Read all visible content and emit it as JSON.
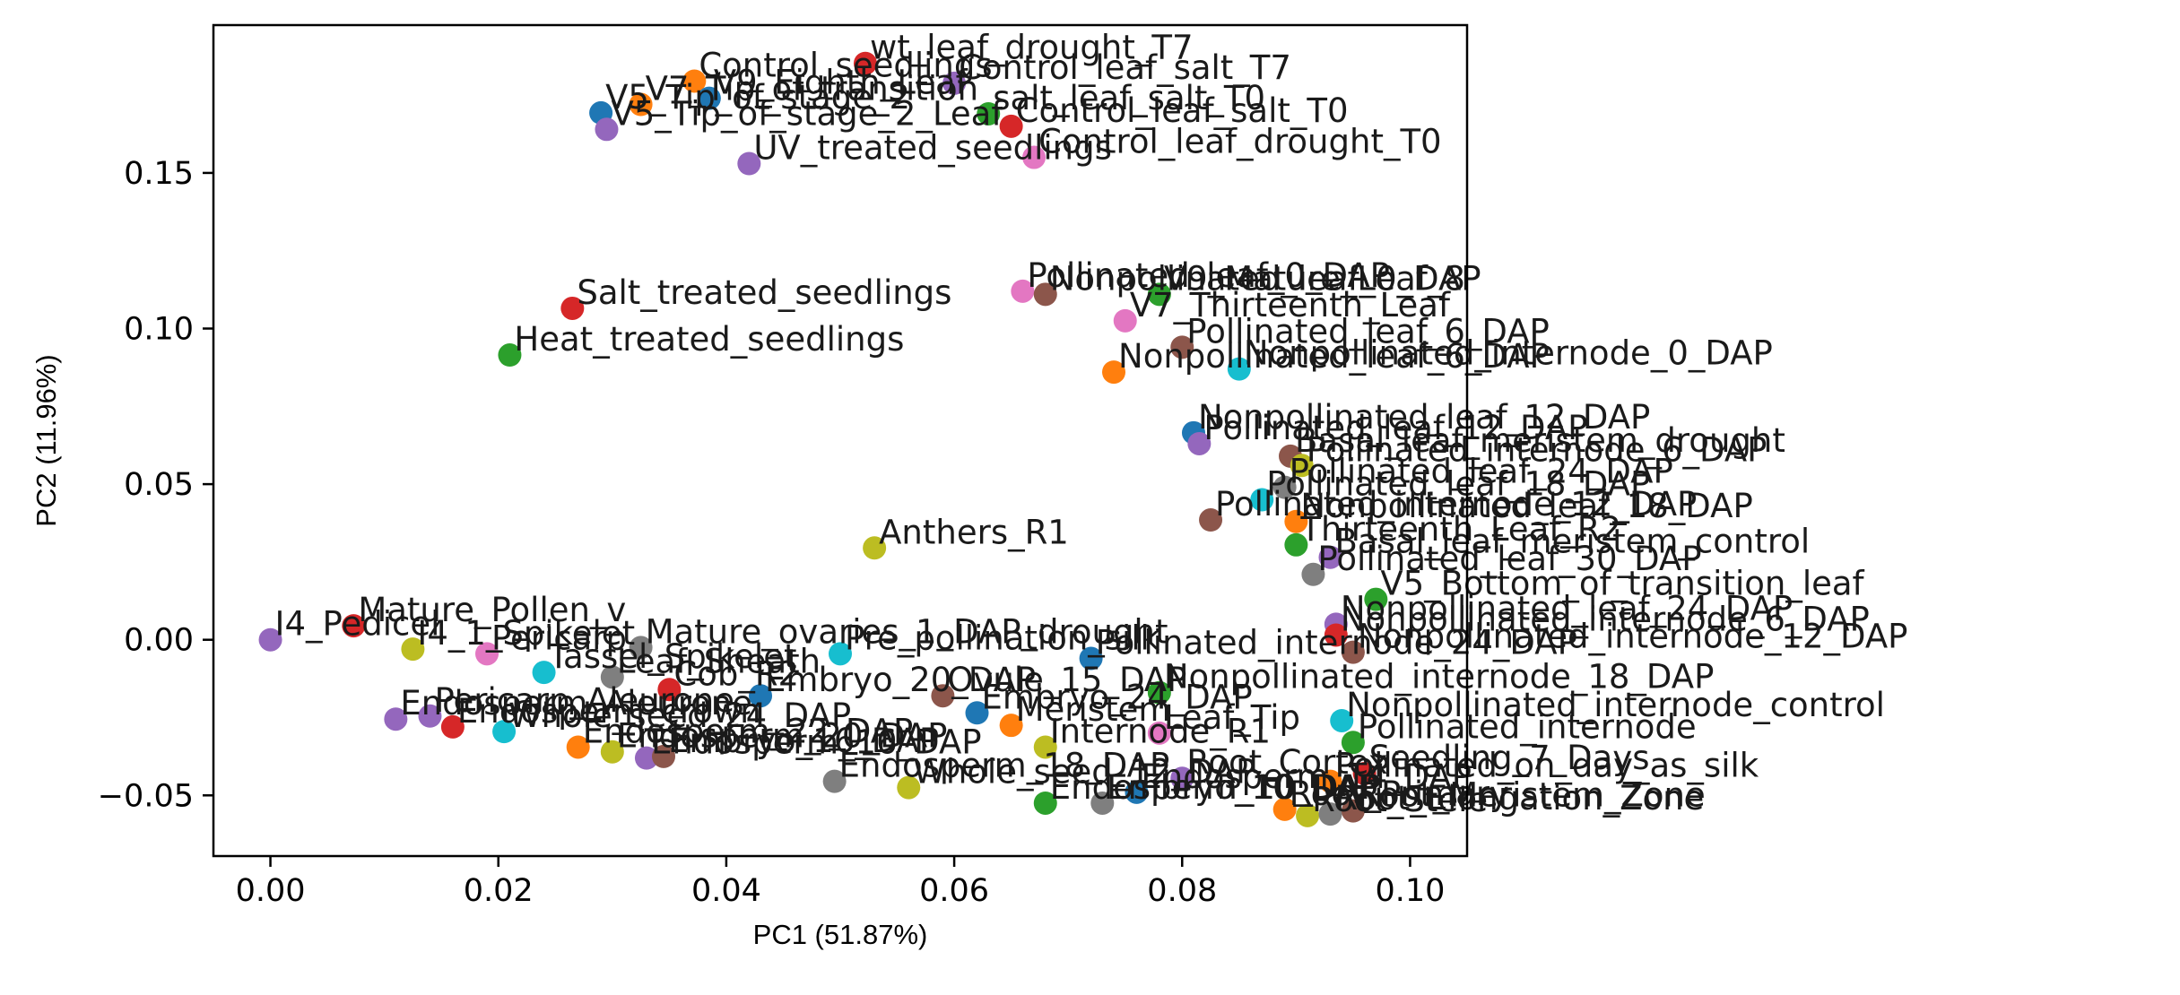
{
  "chart_data": {
    "type": "scatter",
    "xlabel": "PC1 (51.87%)",
    "ylabel": "PC2 (11.96%)",
    "xlim": [
      -0.005,
      0.105
    ],
    "ylim": [
      -0.0695,
      0.1975
    ],
    "xticks": [
      0.0,
      0.02,
      0.04,
      0.06,
      0.08,
      0.1
    ],
    "xtick_labels": [
      "0.00",
      "0.02",
      "0.04",
      "0.06",
      "0.08",
      "0.10"
    ],
    "yticks": [
      -0.05,
      0.0,
      0.05,
      0.1,
      0.15
    ],
    "ytick_labels": [
      "−0.05",
      "0.00",
      "0.05",
      "0.10",
      "0.15"
    ],
    "grid": false,
    "points": [
      {
        "x": 0.0522,
        "y": 0.1852,
        "label": "wt_leaf_drought_T7",
        "color": "#d62728"
      },
      {
        "x": 0.0372,
        "y": 0.1795,
        "label": "Control_seedlings",
        "color": "#ff7f0e"
      },
      {
        "x": 0.06,
        "y": 0.1788,
        "label": "Control_leaf_salt_T7",
        "color": "#9467bd"
      },
      {
        "x": 0.029,
        "y": 0.1693,
        "label": "V5_Tip_of_stage_2",
        "color": "#1f77b4"
      },
      {
        "x": 0.0325,
        "y": 0.172,
        "label": "V7_Tip_of_transition",
        "color": "#ff7f0e"
      },
      {
        "x": 0.0385,
        "y": 0.174,
        "label": "V9_Eighth_Leaf",
        "color": "#1f77b4"
      },
      {
        "x": 0.063,
        "y": 0.169,
        "label": "salt_leaf_salt_T0",
        "color": "#2ca02c"
      },
      {
        "x": 0.065,
        "y": 0.165,
        "label": "Control_leaf_salt_T0",
        "color": "#d62728"
      },
      {
        "x": 0.0295,
        "y": 0.164,
        "label": "V5_Tip_of_stage_2_Leaf",
        "color": "#9467bd"
      },
      {
        "x": 0.042,
        "y": 0.153,
        "label": "UV_treated_seedlings",
        "color": "#9467bd"
      },
      {
        "x": 0.067,
        "y": 0.155,
        "label": "Control_leaf_drought_T0",
        "color": "#e377c2"
      },
      {
        "x": 0.066,
        "y": 0.112,
        "label": "Pollinated_leaf_0_DAP",
        "color": "#e377c2"
      },
      {
        "x": 0.068,
        "y": 0.111,
        "label": "Nonpollinated_leaf_0_DAP",
        "color": "#8c564b"
      },
      {
        "x": 0.078,
        "y": 0.111,
        "label": "V9_Mature_Leaf_8",
        "color": "#2ca02c"
      },
      {
        "x": 0.0265,
        "y": 0.1065,
        "label": "Salt_treated_seedlings",
        "color": "#d62728"
      },
      {
        "x": 0.075,
        "y": 0.1025,
        "label": "V7_Thirteenth_Leaf",
        "color": "#e377c2"
      },
      {
        "x": 0.021,
        "y": 0.0915,
        "label": "Heat_treated_seedlings",
        "color": "#2ca02c"
      },
      {
        "x": 0.08,
        "y": 0.094,
        "label": "Pollinated_leaf_6_DAP",
        "color": "#8c564b"
      },
      {
        "x": 0.074,
        "y": 0.086,
        "label": "Nonpollinated_leaf_6_DAP",
        "color": "#ff7f0e"
      },
      {
        "x": 0.085,
        "y": 0.087,
        "label": "Nonpollinated_internode_0_DAP",
        "color": "#17becf"
      },
      {
        "x": 0.081,
        "y": 0.0665,
        "label": "Nonpollinated_leaf_12_DAP",
        "color": "#1f77b4"
      },
      {
        "x": 0.0815,
        "y": 0.063,
        "label": "Pollinated_leaf_12_DAP",
        "color": "#9467bd"
      },
      {
        "x": 0.0895,
        "y": 0.059,
        "label": "Basal_leaf_meristem_drought",
        "color": "#8c564b"
      },
      {
        "x": 0.0905,
        "y": 0.056,
        "label": "Pollinated_internode_6_DAP",
        "color": "#bcbd22"
      },
      {
        "x": 0.089,
        "y": 0.049,
        "label": "Pollinated_leaf_24_DAP",
        "color": "#7f7f7f"
      },
      {
        "x": 0.087,
        "y": 0.045,
        "label": "Pollinated_leaf_18_DAP",
        "color": "#17becf"
      },
      {
        "x": 0.0825,
        "y": 0.0385,
        "label": "Pollinated_internode_12_DAP",
        "color": "#8c564b"
      },
      {
        "x": 0.09,
        "y": 0.038,
        "label": "Nonpollinated_leaf_18_DAP",
        "color": "#ff7f0e"
      },
      {
        "x": 0.053,
        "y": 0.0295,
        "label": "Anthers_R1",
        "color": "#bcbd22"
      },
      {
        "x": 0.09,
        "y": 0.0305,
        "label": "Thirteenth_Leaf_R2",
        "color": "#2ca02c"
      },
      {
        "x": 0.093,
        "y": 0.0265,
        "label": "Basal_leaf_meristem_control",
        "color": "#9467bd"
      },
      {
        "x": 0.0915,
        "y": 0.021,
        "label": "Pollinated_leaf_30_DAP",
        "color": "#7f7f7f"
      },
      {
        "x": 0.097,
        "y": 0.013,
        "label": "V5_Bottom_of_transition_leaf",
        "color": "#2ca02c"
      },
      {
        "x": 0.0073,
        "y": 0.0045,
        "label": "Mature_Pollen_v",
        "color": "#d62728"
      },
      {
        "x": 0.0935,
        "y": 0.005,
        "label": "Nonpollinated_leaf_24_DAP",
        "color": "#9467bd"
      },
      {
        "x": 0.0935,
        "y": 0.0015,
        "label": "Nonpollinated_internode_6_DAP",
        "color": "#d62728"
      },
      {
        "x": 0.0,
        "y": 0.0,
        "label": "I4_Pedicel",
        "color": "#9467bd"
      },
      {
        "x": 0.0125,
        "y": -0.003,
        "label": "I4_1_Spikelet",
        "color": "#bcbd22"
      },
      {
        "x": 0.019,
        "y": -0.0045,
        "label": "Pericarp",
        "color": "#e377c2"
      },
      {
        "x": 0.0325,
        "y": -0.0025,
        "label": "Mature_ovaries_1_DAP_drought",
        "color": "#7f7f7f"
      },
      {
        "x": 0.05,
        "y": -0.0045,
        "label": "Pre_pollination_silk",
        "color": "#17becf"
      },
      {
        "x": 0.072,
        "y": -0.006,
        "label": "Pollinated_internode_24_DAP",
        "color": "#1f77b4"
      },
      {
        "x": 0.095,
        "y": -0.004,
        "label": "Nonpollinated_internode_12_DAP",
        "color": "#8c564b"
      },
      {
        "x": 0.024,
        "y": -0.0105,
        "label": "Tassel_Spikelet",
        "color": "#17becf"
      },
      {
        "x": 0.03,
        "y": -0.012,
        "label": "Leaf_Sheath",
        "color": "#7f7f7f"
      },
      {
        "x": 0.035,
        "y": -0.016,
        "label": "Cob_R2",
        "color": "#d62728"
      },
      {
        "x": 0.043,
        "y": -0.018,
        "label": "Embryo_20_DAP",
        "color": "#1f77b4"
      },
      {
        "x": 0.059,
        "y": -0.018,
        "label": "Ovule_15_DAP",
        "color": "#8c564b"
      },
      {
        "x": 0.078,
        "y": -0.017,
        "label": "Nonpollinated_internode_18_DAP",
        "color": "#2ca02c"
      },
      {
        "x": 0.011,
        "y": -0.0255,
        "label": "Endosperm_Aleurone",
        "color": "#9467bd"
      },
      {
        "x": 0.014,
        "y": -0.0245,
        "label": "Pericarp_Aleurone",
        "color": "#9467bd"
      },
      {
        "x": 0.016,
        "y": -0.028,
        "label": "Endosperm_crown",
        "color": "#d62728"
      },
      {
        "x": 0.0205,
        "y": -0.0295,
        "label": "Whole_seed_24_DAP",
        "color": "#17becf"
      },
      {
        "x": 0.062,
        "y": -0.0235,
        "label": "Embryo_24_DAP",
        "color": "#1f77b4"
      },
      {
        "x": 0.065,
        "y": -0.0275,
        "label": "Meristem",
        "color": "#ff7f0e"
      },
      {
        "x": 0.078,
        "y": -0.03,
        "label": "Leaf_Tip",
        "color": "#e377c2"
      },
      {
        "x": 0.094,
        "y": -0.026,
        "label": "Nonpollinated_internode_control",
        "color": "#17becf"
      },
      {
        "x": 0.027,
        "y": -0.0345,
        "label": "Endosperm_22_DAP",
        "color": "#ff7f0e"
      },
      {
        "x": 0.03,
        "y": -0.036,
        "label": "Endosperm_20_DAP",
        "color": "#bcbd22"
      },
      {
        "x": 0.033,
        "y": -0.038,
        "label": "Endosperm_16_DAP",
        "color": "#9467bd"
      },
      {
        "x": 0.0345,
        "y": -0.0375,
        "label": "Embryo_16_DAP",
        "color": "#8c564b"
      },
      {
        "x": 0.068,
        "y": -0.0345,
        "label": "Internode_R1",
        "color": "#bcbd22"
      },
      {
        "x": 0.095,
        "y": -0.033,
        "label": "Pollinated_internode",
        "color": "#2ca02c"
      },
      {
        "x": 0.0495,
        "y": -0.0455,
        "label": "Endosperm_18_DAP",
        "color": "#7f7f7f"
      },
      {
        "x": 0.056,
        "y": -0.0475,
        "label": "Whole_seed_12_DAP",
        "color": "#bcbd22"
      },
      {
        "x": 0.076,
        "y": -0.049,
        "label": "Endosperm_14_DAP",
        "color": "#1f77b4"
      },
      {
        "x": 0.08,
        "y": -0.0445,
        "label": "Root_Cortex",
        "color": "#9467bd"
      },
      {
        "x": 0.096,
        "y": -0.043,
        "label": "Seedling_7_Days",
        "color": "#d62728"
      },
      {
        "x": 0.093,
        "y": -0.0455,
        "label": "Pollinated_on_day_as_silk",
        "color": "#ff7f0e"
      },
      {
        "x": 0.068,
        "y": -0.0525,
        "label": "Endosperm_10_DAP",
        "color": "#2ca02c"
      },
      {
        "x": 0.073,
        "y": -0.0525,
        "label": "Embryo_10_DAP",
        "color": "#7f7f7f"
      },
      {
        "x": 0.089,
        "y": -0.0545,
        "label": "Root_Primary",
        "color": "#ff7f0e"
      },
      {
        "x": 0.091,
        "y": -0.0565,
        "label": "Root_Stele",
        "color": "#bcbd22"
      },
      {
        "x": 0.093,
        "y": -0.056,
        "label": "Root_Elongation_Zone",
        "color": "#7f7f7f"
      },
      {
        "x": 0.095,
        "y": -0.055,
        "label": "Root_Meristem_Zone",
        "color": "#8c564b"
      }
    ]
  }
}
